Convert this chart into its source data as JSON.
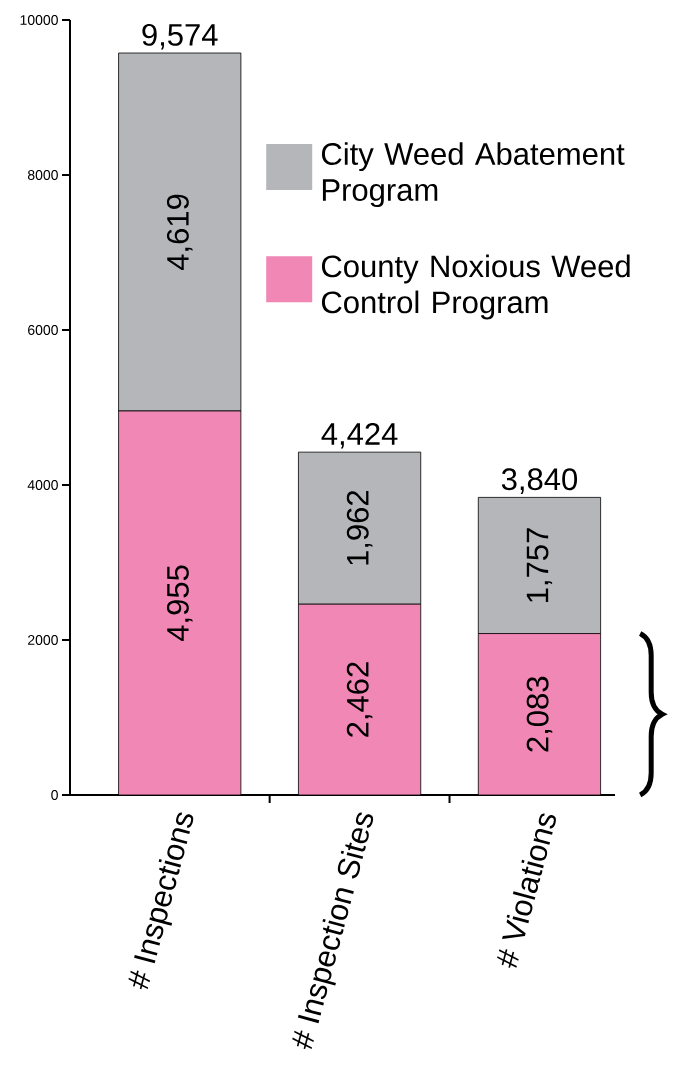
{
  "chart_data": {
    "type": "bar",
    "stacked": true,
    "categories": [
      "# Inspections",
      "# Inspection Sites",
      "# Violations"
    ],
    "series": [
      {
        "name": "County Noxious Weed Control Program",
        "color": "#f087b5",
        "values": [
          4955,
          2462,
          2083
        ],
        "value_labels": [
          "4,955",
          "2,462",
          "2,083"
        ]
      },
      {
        "name": "City Weed Abatement Program",
        "color": "#b5b6b9",
        "values": [
          4619,
          1962,
          1757
        ],
        "value_labels": [
          "4,619",
          "1,962",
          "1,757"
        ]
      }
    ],
    "totals": [
      "9,574",
      "4,424",
      "3,840"
    ],
    "ylim": [
      0,
      10000
    ],
    "yticks": [
      0,
      2000,
      4000,
      6000,
      8000,
      10000
    ],
    "grid": false,
    "legend": "top right"
  }
}
